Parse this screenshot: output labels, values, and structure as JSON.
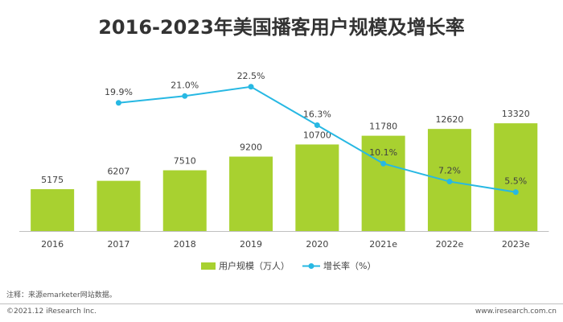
{
  "page": {
    "title": "2016-2023年美国播客用户规模及增长率",
    "note": "注释：来源emarketer网站数据。",
    "copyright": "©2021.12 iResearch Inc.",
    "website": "www.iresearch.com.cn"
  },
  "colors": {
    "bar": "#a8d130",
    "line": "#27b8e3",
    "axis": "#bfbfbf",
    "text": "#404040"
  },
  "chart_data": {
    "type": "bar",
    "categories": [
      "2016",
      "2017",
      "2018",
      "2019",
      "2020",
      "2021e",
      "2022e",
      "2023e"
    ],
    "series": [
      {
        "name": "用户规模（万人）",
        "type": "bar",
        "values": [
          5175,
          6207,
          7510,
          9200,
          10700,
          11780,
          12620,
          13320
        ],
        "labels": [
          "5175",
          "6207",
          "7510",
          "9200",
          "10700",
          "11780",
          "12620",
          "13320"
        ]
      },
      {
        "name": "增长率（%）",
        "type": "line",
        "values": [
          null,
          19.9,
          21.0,
          22.5,
          16.3,
          10.1,
          7.2,
          5.5
        ],
        "labels": [
          "",
          "19.9%",
          "21.0%",
          "22.5%",
          "16.3%",
          "10.1%",
          "7.2%",
          "5.5%"
        ]
      }
    ],
    "legend_position": "bottom",
    "grid": false
  }
}
